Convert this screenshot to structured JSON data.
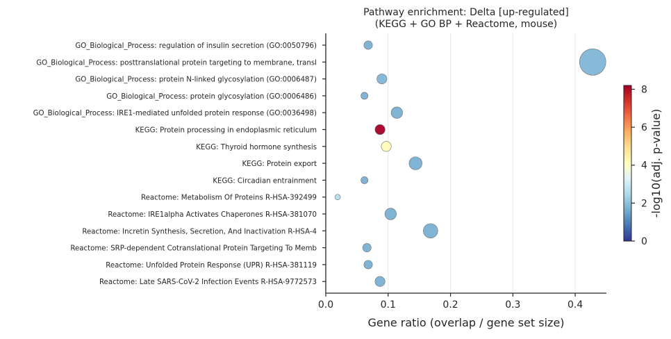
{
  "chart_data": {
    "type": "scatter",
    "title": "Pathway enrichment: Delta  [up-regulated]",
    "subtitle": "(KEGG + GO BP + Reactome, mouse)",
    "xlabel": "Gene ratio (overlap / gene set size)",
    "xlim": [
      0,
      0.45
    ],
    "xticks": [
      0.0,
      0.1,
      0.2,
      0.3,
      0.4
    ],
    "xtick_labels": [
      "0.0",
      "0.1",
      "0.2",
      "0.3",
      "0.4"
    ],
    "grid": "x only",
    "colorbar": {
      "label": "-log10(adj. p-value)",
      "range": [
        0,
        8.2
      ],
      "ticks": [
        0,
        2,
        4,
        6,
        8
      ],
      "tick_labels": [
        "0",
        "2",
        "4",
        "6",
        "8"
      ],
      "colormap": "RdYlBu_r",
      "colors": [
        "#313695",
        "#4575b4",
        "#74add1",
        "#abd9e9",
        "#e0f3f8",
        "#ffffbf",
        "#fee090",
        "#fdae61",
        "#f46d43",
        "#d73027",
        "#a50026"
      ]
    },
    "point_size_meaning": "overlap",
    "points": [
      {
        "term": "GO_Biological_Process: regulation of insulin secretion (GO:0050796)",
        "x": 0.068,
        "color_value": 1.7,
        "size": 3
      },
      {
        "term": "GO_Biological_Process: posttranslational protein targeting to membrane, transl",
        "x": 0.428,
        "color_value": 1.8,
        "size": 15
      },
      {
        "term": "GO_Biological_Process: protein N-linked glycosylation (GO:0006487)",
        "x": 0.09,
        "color_value": 1.8,
        "size": 4
      },
      {
        "term": "GO_Biological_Process: protein glycosylation (GO:0006486)",
        "x": 0.062,
        "color_value": 1.7,
        "size": 2
      },
      {
        "term": "GO_Biological_Process: IRE1-mediated unfolded protein response (GO:0036498)",
        "x": 0.114,
        "color_value": 1.7,
        "size": 5
      },
      {
        "term": "KEGG: Protein processing in endoplasmic reticulum",
        "x": 0.087,
        "color_value": 8.2,
        "size": 4
      },
      {
        "term": "KEGG: Thyroid hormone synthesis",
        "x": 0.097,
        "color_value": 4.2,
        "size": 4
      },
      {
        "term": "KEGG: Protein export",
        "x": 0.144,
        "color_value": 1.7,
        "size": 6
      },
      {
        "term": "KEGG: Circadian entrainment",
        "x": 0.062,
        "color_value": 1.7,
        "size": 2
      },
      {
        "term": "Reactome: Metabolism Of Proteins R-HSA-392499",
        "x": 0.019,
        "color_value": 2.6,
        "size": 1
      },
      {
        "term": "Reactome: IRE1alpha Activates Chaperones R-HSA-381070",
        "x": 0.104,
        "color_value": 1.7,
        "size": 5
      },
      {
        "term": "Reactome: Incretin Synthesis, Secretion, And Inactivation R-HSA-4",
        "x": 0.168,
        "color_value": 1.7,
        "size": 7
      },
      {
        "term": "Reactome: SRP-dependent Cotranslational Protein Targeting To Memb",
        "x": 0.066,
        "color_value": 1.7,
        "size": 3
      },
      {
        "term": "Reactome: Unfolded Protein Response (UPR) R-HSA-381119",
        "x": 0.068,
        "color_value": 1.7,
        "size": 3
      },
      {
        "term": "Reactome: Late SARS-CoV-2 Infection Events R-HSA-9772573",
        "x": 0.087,
        "color_value": 1.7,
        "size": 4
      }
    ]
  }
}
